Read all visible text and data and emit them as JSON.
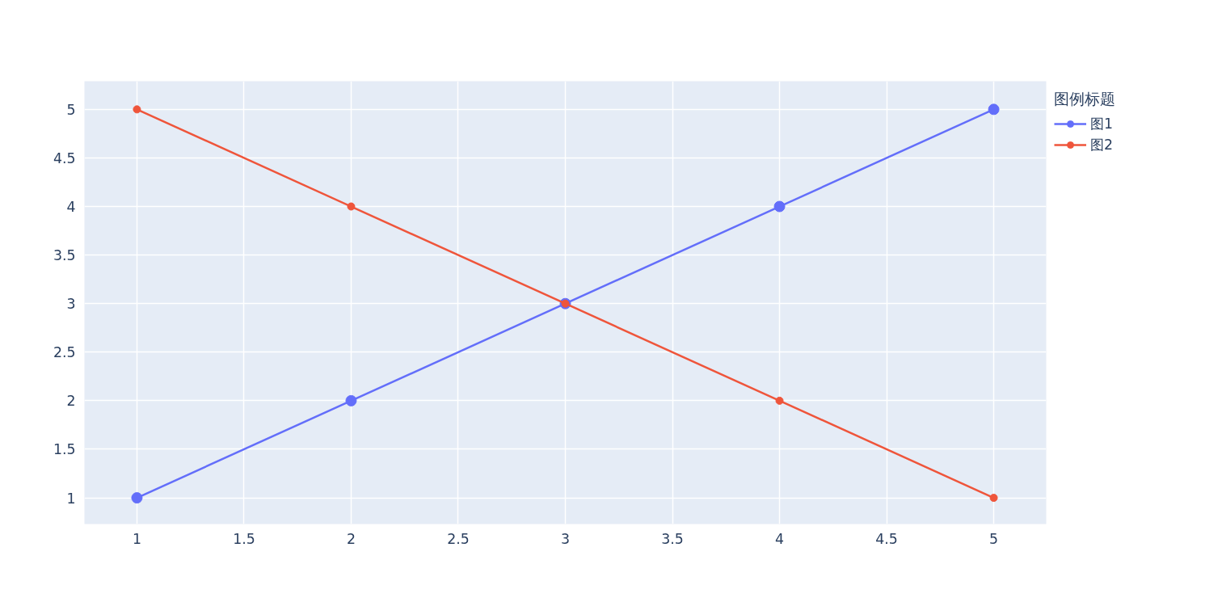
{
  "chart_data": {
    "type": "line",
    "legend_title": "图例标题",
    "legend": "top right",
    "marker": "circle",
    "grid": true,
    "x": [
      1,
      2,
      3,
      4,
      5
    ],
    "series": [
      {
        "name": "图1",
        "color": "#636efa",
        "values": [
          1,
          2,
          3,
          4,
          5
        ]
      },
      {
        "name": "图2",
        "color": "#ef553b",
        "values": [
          5,
          4,
          3,
          2,
          1
        ]
      }
    ],
    "xlim": [
      0.755,
      5.245
    ],
    "ylim": [
      0.73,
      5.29
    ],
    "xticks": [
      1,
      1.5,
      2,
      2.5,
      3,
      3.5,
      4,
      4.5,
      5
    ],
    "yticks": [
      1,
      1.5,
      2,
      2.5,
      3,
      3.5,
      4,
      4.5,
      5
    ]
  }
}
